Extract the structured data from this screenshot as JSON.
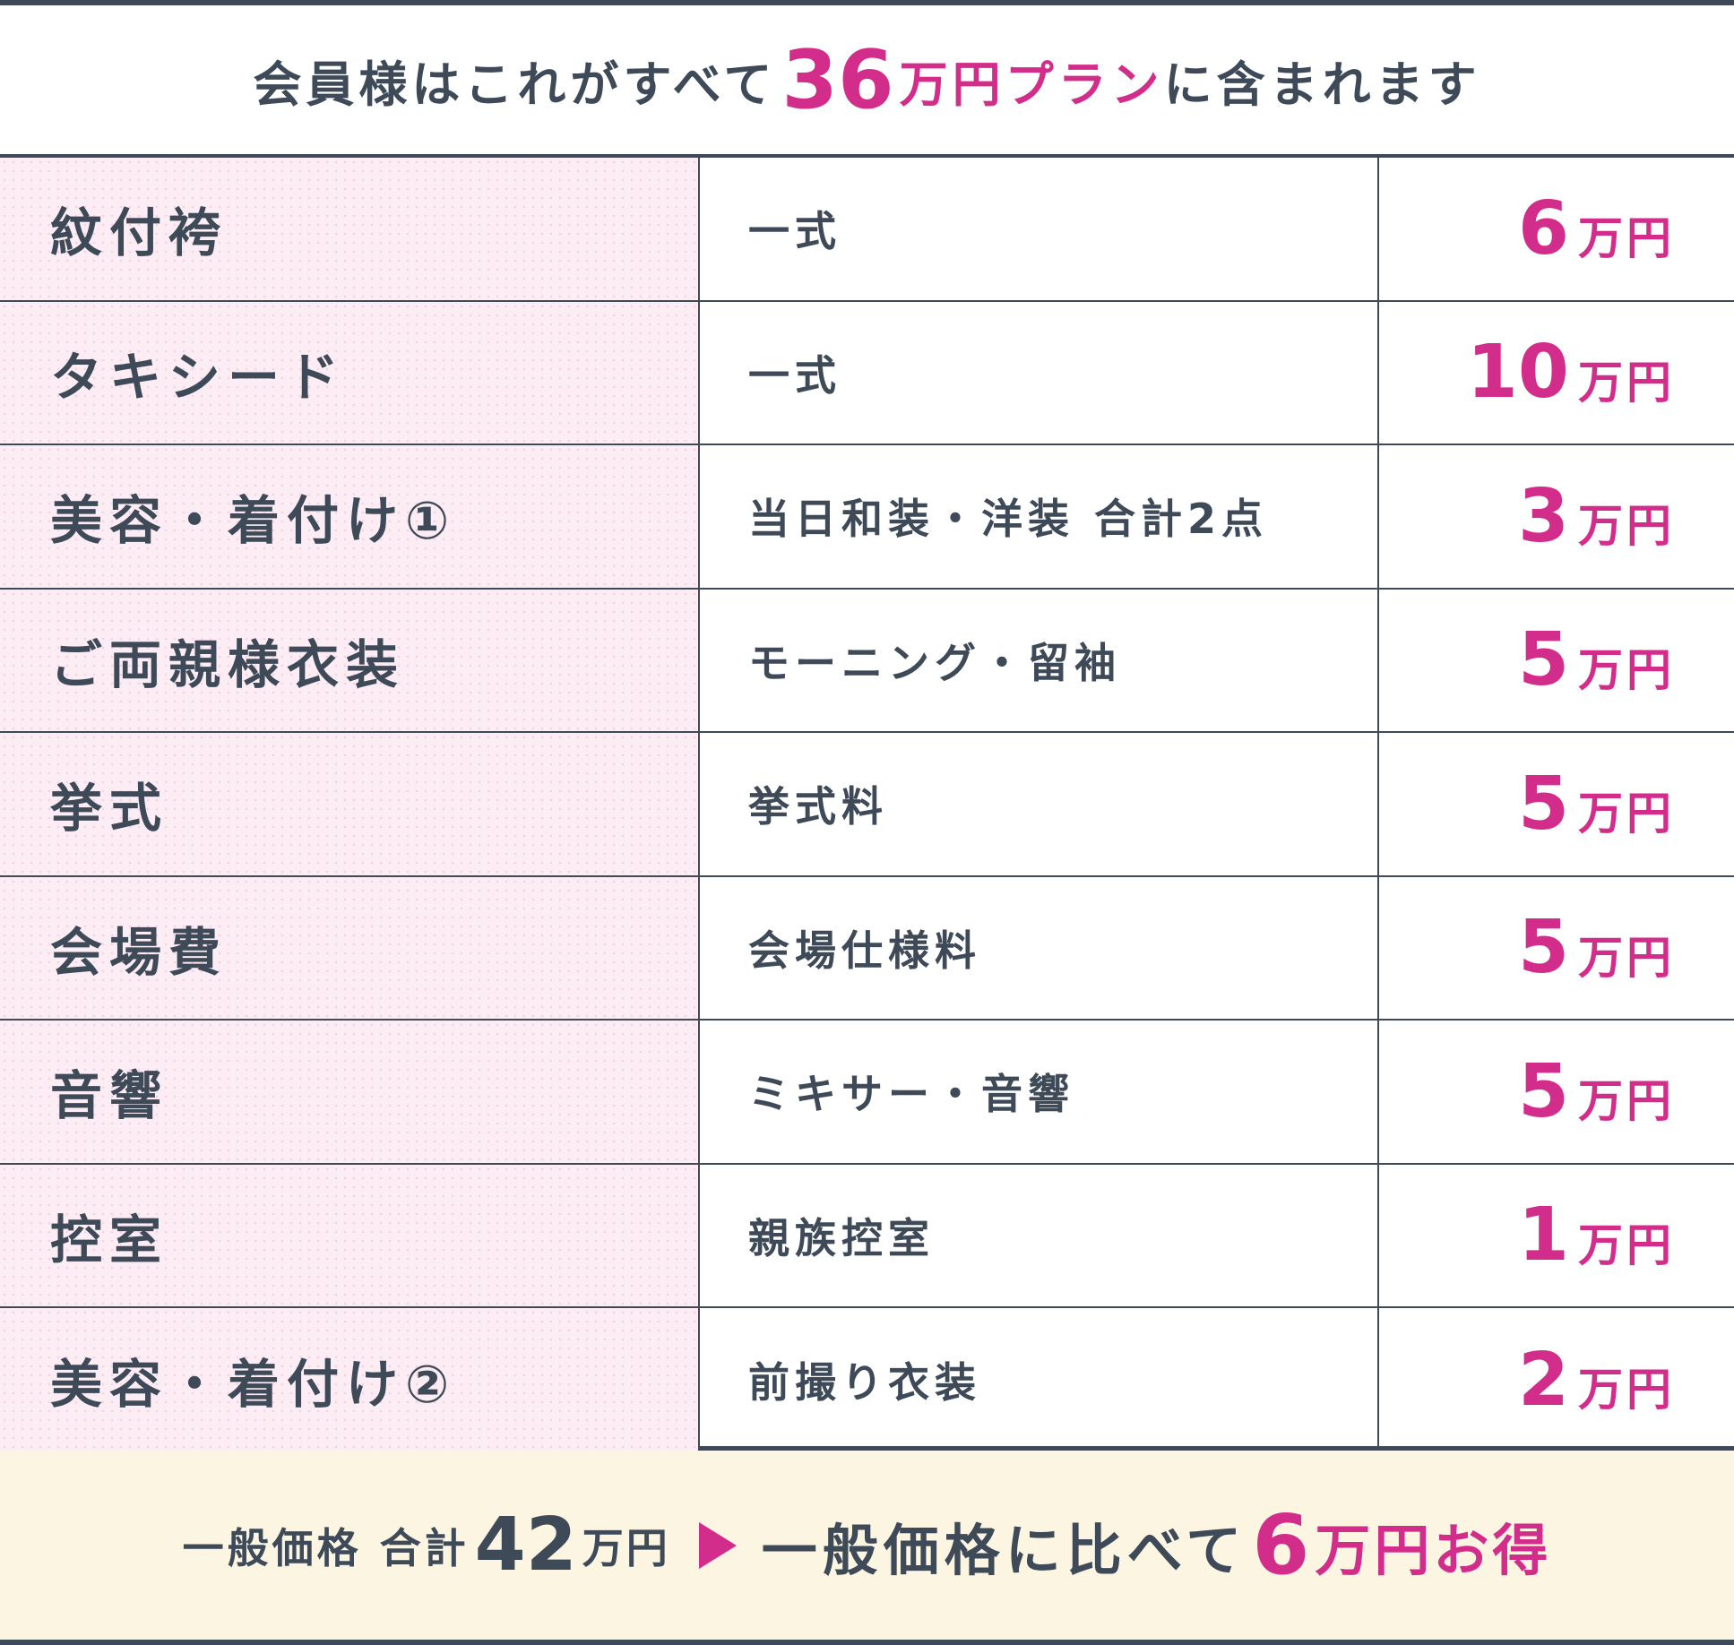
{
  "colors": {
    "accent": "#d22d8a",
    "text": "#3f4a58",
    "label_bg": "#fcedf4",
    "footer_bg": "#fbf5e1"
  },
  "header": {
    "prefix": "会員様はこれがすべて",
    "amount": "36",
    "unit": "万円",
    "plan": "プラン",
    "suffix": "に含まれます"
  },
  "rows": [
    {
      "item": "紋付袴",
      "detail": "一式",
      "price": "6",
      "unit": "万円"
    },
    {
      "item": "タキシード",
      "detail": "一式",
      "price": "10",
      "unit": "万円"
    },
    {
      "item": "美容・着付け①",
      "detail": "当日和装・洋装 合計2点",
      "price": "3",
      "unit": "万円"
    },
    {
      "item": "ご両親様衣装",
      "detail": "モーニング・留袖",
      "price": "5",
      "unit": "万円"
    },
    {
      "item": "挙式",
      "detail": "挙式料",
      "price": "5",
      "unit": "万円"
    },
    {
      "item": "会場費",
      "detail": "会場仕様料",
      "price": "5",
      "unit": "万円"
    },
    {
      "item": "音響",
      "detail": "ミキサー・音響",
      "price": "5",
      "unit": "万円"
    },
    {
      "item": "控室",
      "detail": "親族控室",
      "price": "1",
      "unit": "万円"
    },
    {
      "item": "美容・着付け②",
      "detail": "前撮り衣装",
      "price": "2",
      "unit": "万円"
    }
  ],
  "footer": {
    "regular_label": "一般価格 合計",
    "regular_amount": "42",
    "regular_unit": "万円",
    "compare_text": "一般価格に比べて",
    "savings_amount": "6",
    "savings_unit": "万円お得"
  }
}
